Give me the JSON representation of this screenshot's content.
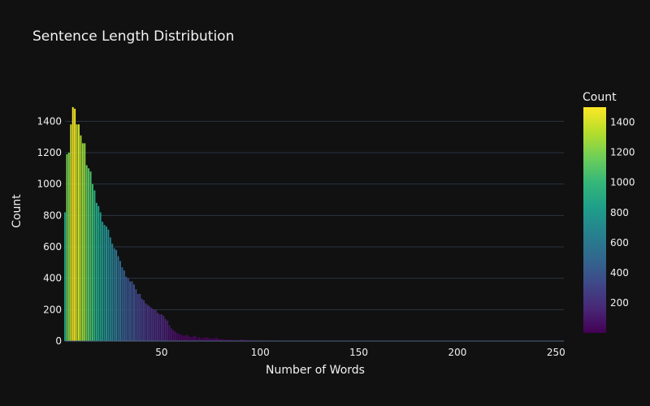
{
  "chart_data": {
    "type": "bar",
    "title": "Sentence Length Distribution",
    "xlabel": "Number of Words",
    "ylabel": "Count",
    "xlim": [
      1,
      254
    ],
    "ylim": [
      0,
      1500
    ],
    "x_ticks": [
      50,
      100,
      150,
      200,
      250
    ],
    "y_ticks": [
      0,
      200,
      400,
      600,
      800,
      1000,
      1200,
      1400
    ],
    "grid": true,
    "colorbar": {
      "title": "Count",
      "range": [
        1,
        1500
      ],
      "ticks": [
        200,
        400,
        600,
        800,
        1000,
        1200,
        1400
      ],
      "colorscale": "viridis",
      "colors": [
        "#440154",
        "#482878",
        "#3e4989",
        "#31688e",
        "#26828e",
        "#1f9e89",
        "#35b779",
        "#6ece58",
        "#b5de2b",
        "#fde725"
      ]
    },
    "x": [
      1,
      2,
      3,
      4,
      5,
      6,
      7,
      8,
      9,
      10,
      11,
      12,
      13,
      14,
      15,
      16,
      17,
      18,
      19,
      20,
      21,
      22,
      23,
      24,
      25,
      26,
      27,
      28,
      29,
      30,
      31,
      32,
      33,
      34,
      35,
      36,
      37,
      38,
      39,
      40,
      41,
      42,
      43,
      44,
      45,
      46,
      47,
      48,
      49,
      50,
      51,
      52,
      53,
      54,
      55,
      56,
      57,
      58,
      59,
      60,
      61,
      62,
      63,
      64,
      65,
      66,
      67,
      68,
      69,
      70,
      71,
      72,
      73,
      74,
      75,
      76,
      77,
      78,
      79,
      80,
      81,
      82,
      83,
      84,
      85,
      86,
      87,
      88,
      89,
      90,
      91,
      92,
      93,
      94,
      95,
      96,
      97,
      98,
      99,
      100,
      102,
      104,
      106,
      108,
      110,
      112,
      115,
      118,
      120,
      125,
      130,
      135,
      140,
      150,
      160,
      170,
      180,
      200,
      220,
      250
    ],
    "values": [
      820,
      1190,
      1200,
      1380,
      1490,
      1480,
      1380,
      1380,
      1310,
      1260,
      1260,
      1120,
      1100,
      1080,
      1000,
      960,
      880,
      860,
      820,
      760,
      740,
      730,
      710,
      660,
      620,
      590,
      580,
      540,
      510,
      470,
      450,
      410,
      400,
      380,
      380,
      360,
      330,
      300,
      300,
      270,
      260,
      240,
      230,
      220,
      210,
      200,
      200,
      180,
      170,
      170,
      160,
      140,
      130,
      100,
      80,
      70,
      60,
      50,
      45,
      40,
      35,
      35,
      40,
      30,
      25,
      30,
      35,
      20,
      25,
      20,
      18,
      22,
      25,
      20,
      18,
      15,
      20,
      22,
      15,
      12,
      12,
      10,
      8,
      10,
      8,
      6,
      8,
      5,
      6,
      12,
      10,
      8,
      6,
      5,
      6,
      5,
      4,
      5,
      4,
      5,
      4,
      5,
      3,
      3,
      3,
      2,
      3,
      2,
      2,
      2,
      2,
      2,
      2,
      1,
      1,
      1,
      1,
      1,
      1,
      1
    ]
  }
}
